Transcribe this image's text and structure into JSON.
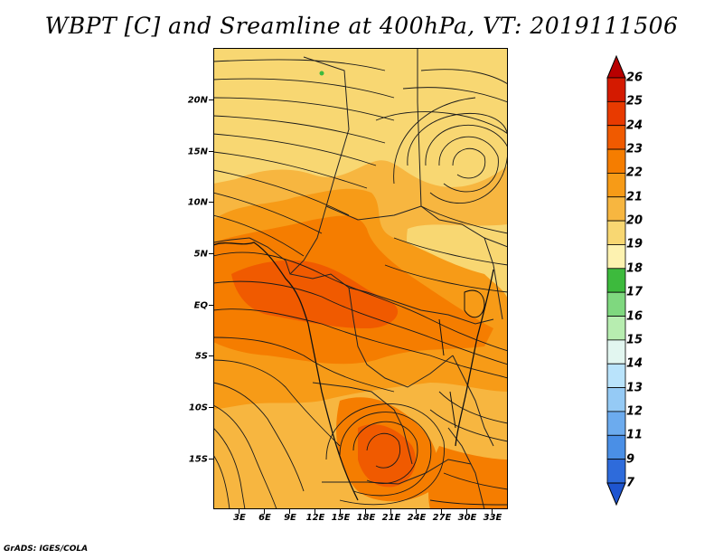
{
  "title": "WBPT [C] and Sreamline at 400hPa, VT: 2019111506",
  "credit": "GrADS: IGES/COLA",
  "lat_labels": [
    "20N",
    "15N",
    "10N",
    "5N",
    "EQ",
    "5S",
    "10S",
    "15S"
  ],
  "lon_labels": [
    "3E",
    "6E",
    "9E",
    "12E",
    "15E",
    "18E",
    "21E",
    "24E",
    "27E",
    "30E",
    "33E"
  ],
  "colorbar": {
    "labels": [
      "26",
      "25",
      "24",
      "23",
      "22",
      "21",
      "20",
      "19",
      "18",
      "17",
      "16",
      "15",
      "14",
      "13",
      "12",
      "11",
      "9",
      "7"
    ],
    "colors": [
      "#b80000",
      "#d41a00",
      "#e83a00",
      "#f05a00",
      "#f57d00",
      "#f79b17",
      "#f7b640",
      "#f8d772",
      "#fdf2b0",
      "#3dba3d",
      "#7fd87f",
      "#b7edb0",
      "#e2f6f0",
      "#b9e3fb",
      "#95caf5",
      "#6cabee",
      "#4a8fe6",
      "#2e6bdb",
      "#1e55d0"
    ]
  },
  "field_colors": {
    "c19": "#f8d772",
    "c20": "#f7b640",
    "c21": "#f79b17",
    "c22": "#f57d00",
    "c23": "#f05a00",
    "c17": "#3dba3d"
  }
}
